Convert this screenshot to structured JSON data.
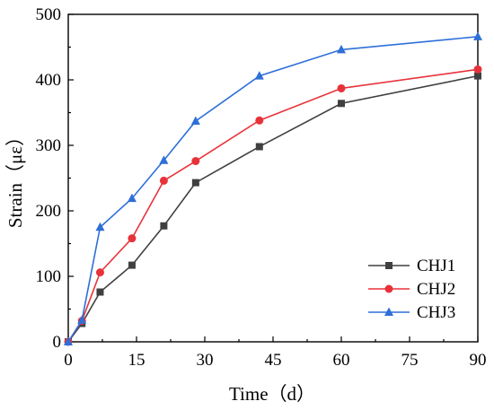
{
  "chart_data": {
    "type": "line",
    "xlabel": "Time（d）",
    "ylabel": "Strain（με）",
    "xlim": [
      0,
      90
    ],
    "ylim": [
      0,
      500
    ],
    "xticks": [
      "0",
      "15",
      "30",
      "45",
      "60",
      "75",
      "90"
    ],
    "yticks": [
      "0",
      "100",
      "200",
      "300",
      "400",
      "500"
    ],
    "grid": false,
    "legend_position": "bottom-right",
    "series": [
      {
        "name": "CHJ1",
        "color": "#404040",
        "marker": "square",
        "x": [
          0,
          3,
          7,
          14,
          21,
          28,
          42,
          60,
          90
        ],
        "y": [
          0,
          28,
          76,
          117,
          177,
          243,
          298,
          364,
          406
        ]
      },
      {
        "name": "CHJ2",
        "color": "#e8323a",
        "marker": "circle",
        "x": [
          0,
          3,
          7,
          14,
          21,
          28,
          42,
          60,
          90
        ],
        "y": [
          0,
          32,
          106,
          158,
          246,
          276,
          338,
          387,
          416
        ]
      },
      {
        "name": "CHJ3",
        "color": "#2e6fd8",
        "marker": "triangle",
        "x": [
          0,
          3,
          7,
          14,
          21,
          28,
          42,
          60,
          90
        ],
        "y": [
          0,
          33,
          175,
          219,
          277,
          337,
          406,
          446,
          466
        ]
      }
    ]
  }
}
